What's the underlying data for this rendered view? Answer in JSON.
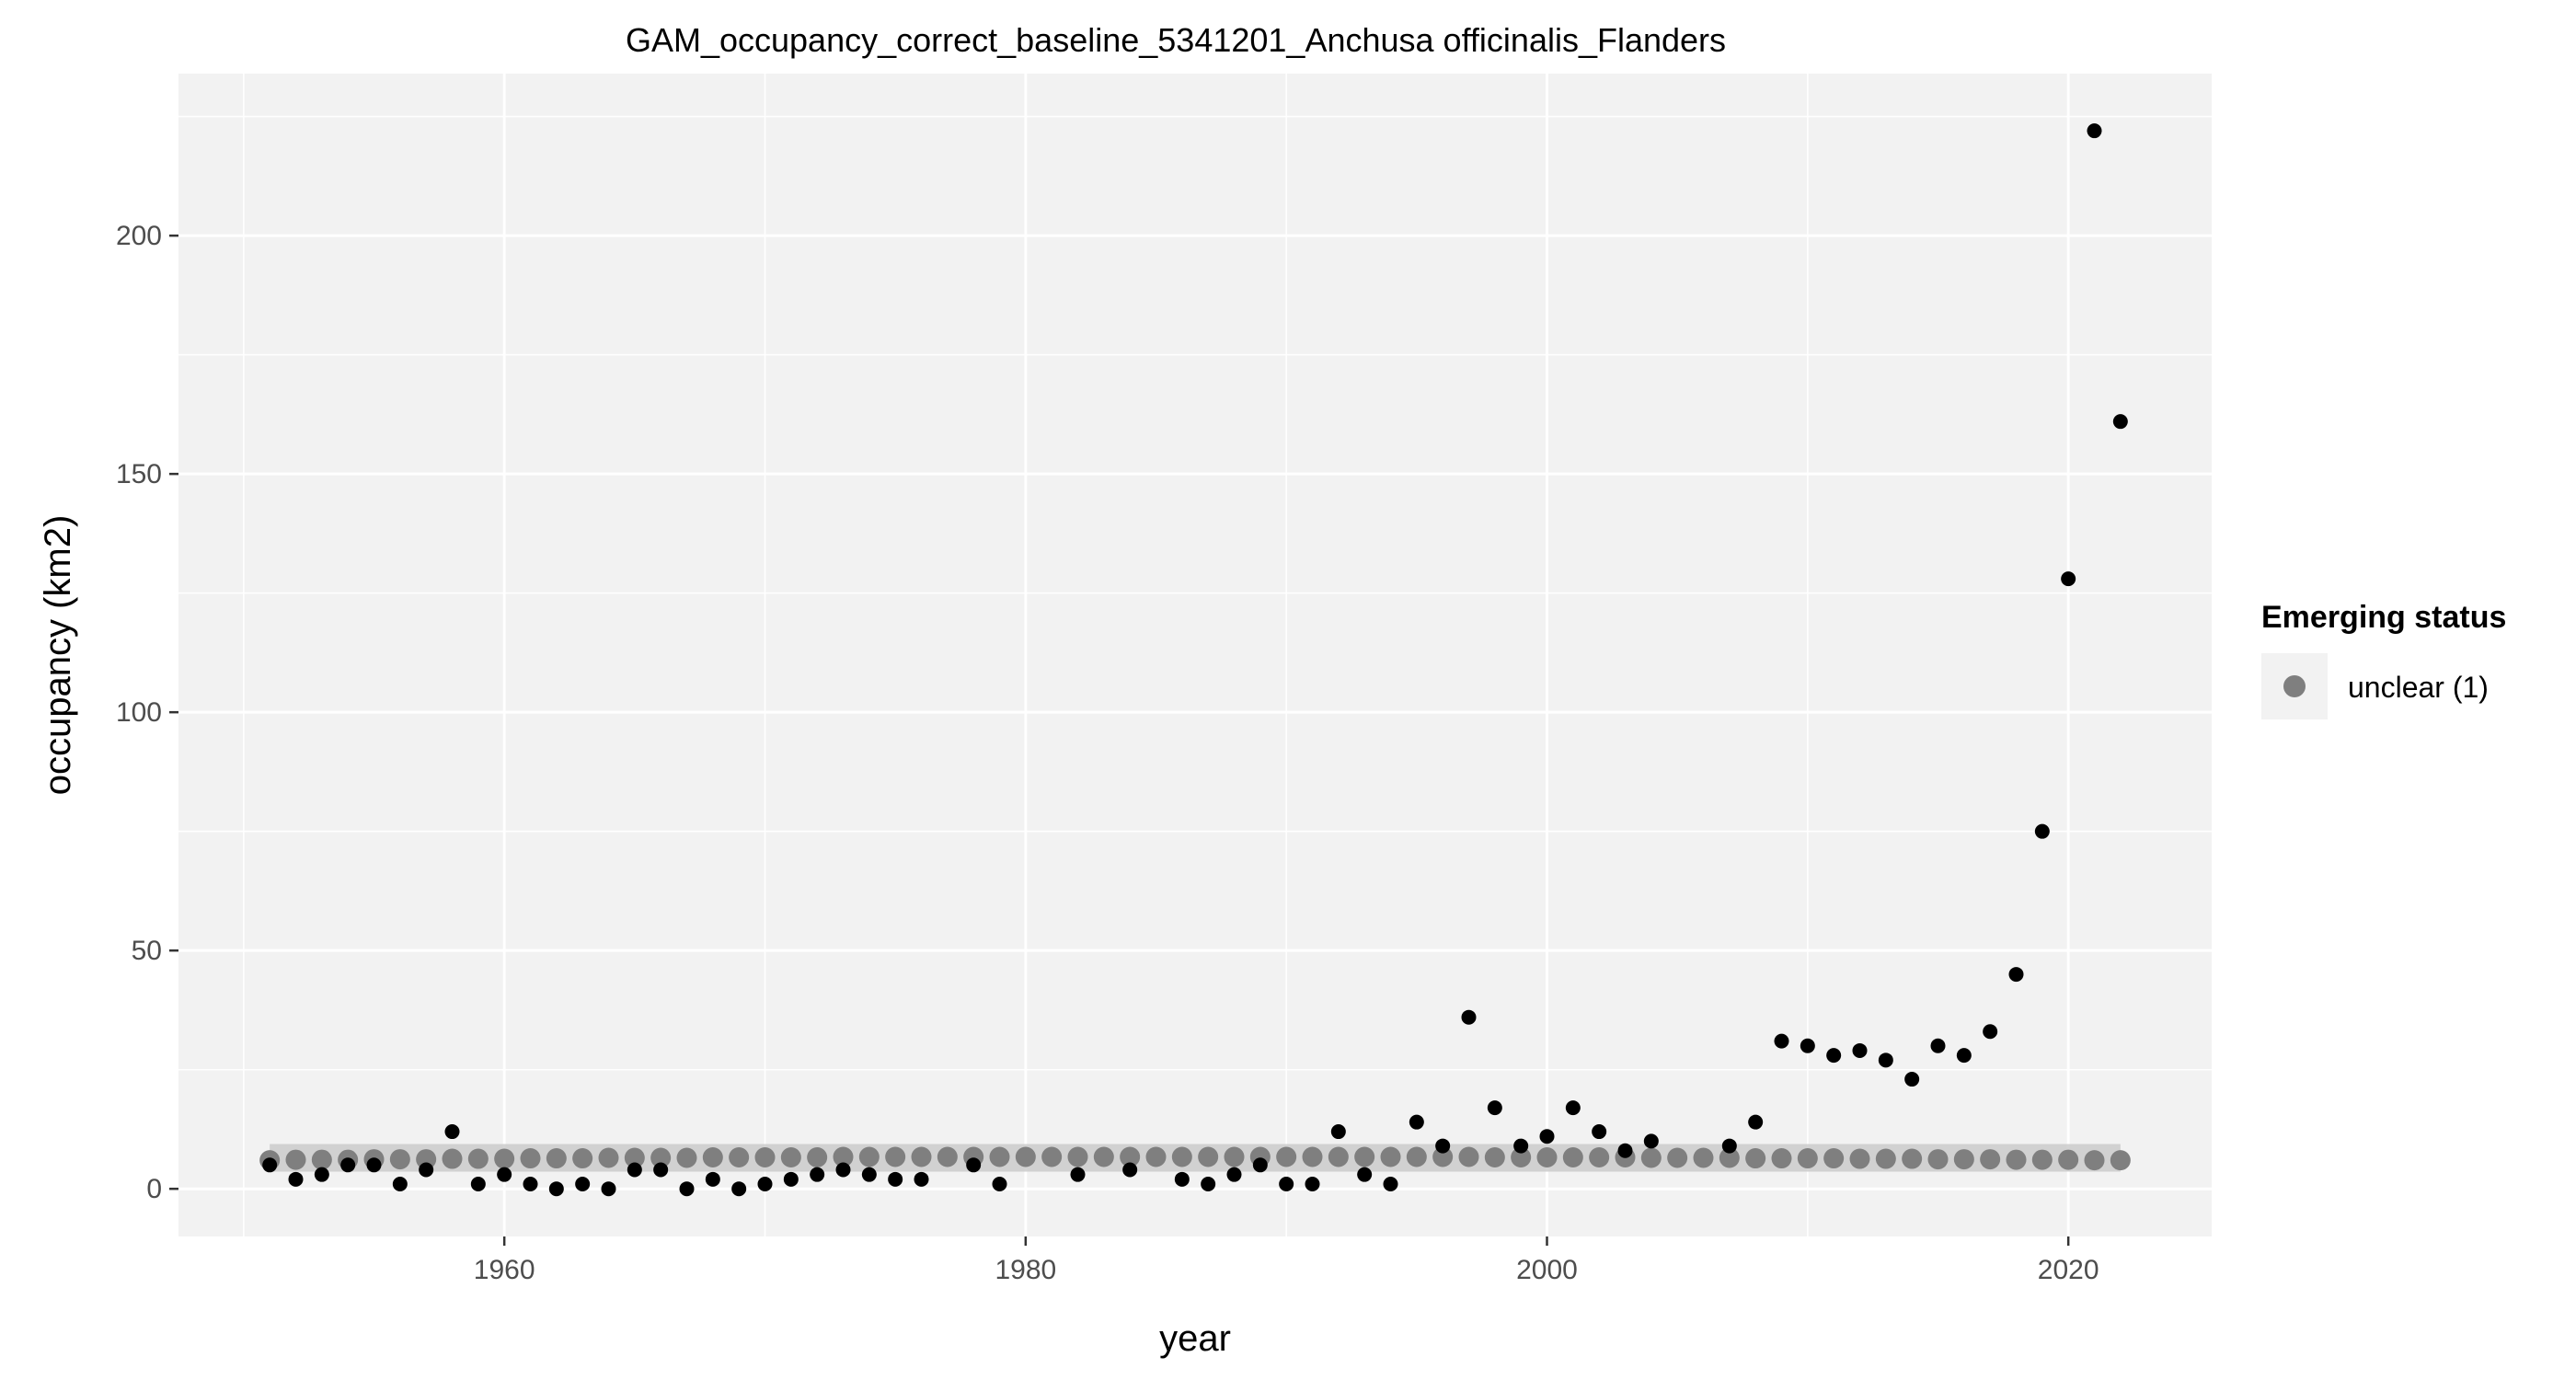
{
  "chart_data": {
    "type": "scatter",
    "title": "GAM_occupancy_correct_baseline_5341201_Anchusa officinalis_Flanders",
    "xlabel": "year",
    "ylabel": "occupancy (km2)",
    "xlim": [
      1947.5,
      2025.5
    ],
    "ylim": [
      -10,
      234
    ],
    "xticks": [
      1960,
      1980,
      2000,
      2020
    ],
    "yticks": [
      0,
      50,
      100,
      150,
      200
    ],
    "grid": true,
    "legend": {
      "title": "Emerging status",
      "entries": [
        {
          "label": "unclear (1)",
          "color": "#7f7f7f"
        }
      ],
      "placement": "right"
    },
    "colors": {
      "panel": "#f2f2f2",
      "grid_major": "#ffffff",
      "observed": "#000000",
      "fit": "#7f7f7f",
      "ribbon": "#c8c8c8"
    },
    "observed": {
      "x": [
        1951,
        1952,
        1953,
        1954,
        1955,
        1956,
        1957,
        1958,
        1959,
        1960,
        1961,
        1962,
        1963,
        1964,
        1965,
        1966,
        1967,
        1968,
        1969,
        1970,
        1971,
        1972,
        1973,
        1974,
        1975,
        1976,
        1978,
        1979,
        1982,
        1984,
        1986,
        1987,
        1988,
        1989,
        1990,
        1991,
        1992,
        1993,
        1994,
        1995,
        1996,
        1997,
        1998,
        1999,
        2000,
        2001,
        2002,
        2003,
        2004,
        2007,
        2008,
        2009,
        2010,
        2011,
        2012,
        2013,
        2014,
        2015,
        2016,
        2017,
        2018,
        2019,
        2020,
        2021,
        2022
      ],
      "y": [
        5,
        2,
        3,
        5,
        5,
        1,
        4,
        12,
        1,
        3,
        1,
        0,
        1,
        0,
        4,
        4,
        0,
        2,
        0,
        1,
        2,
        3,
        4,
        3,
        2,
        2,
        5,
        1,
        3,
        4,
        2,
        1,
        3,
        5,
        1,
        1,
        12,
        3,
        1,
        14,
        9,
        36,
        17,
        9,
        11,
        17,
        12,
        8,
        10,
        9,
        14,
        31,
        30,
        28,
        29,
        27,
        23,
        30,
        28,
        33,
        45,
        75,
        128,
        222,
        161
      ]
    },
    "fitted": {
      "x_start": 1951,
      "x_end": 2022,
      "values": [
        6.0,
        6.1,
        6.1,
        6.1,
        6.2,
        6.2,
        6.2,
        6.3,
        6.3,
        6.3,
        6.4,
        6.4,
        6.4,
        6.5,
        6.5,
        6.5,
        6.5,
        6.6,
        6.6,
        6.6,
        6.6,
        6.6,
        6.7,
        6.7,
        6.7,
        6.7,
        6.7,
        6.7,
        6.7,
        6.7,
        6.7,
        6.7,
        6.7,
        6.7,
        6.7,
        6.7,
        6.7,
        6.7,
        6.7,
        6.7,
        6.7,
        6.7,
        6.7,
        6.7,
        6.7,
        6.7,
        6.7,
        6.6,
        6.6,
        6.6,
        6.6,
        6.6,
        6.6,
        6.5,
        6.5,
        6.5,
        6.5,
        6.4,
        6.4,
        6.4,
        6.4,
        6.3,
        6.3,
        6.3,
        6.2,
        6.2,
        6.2,
        6.1,
        6.1,
        6.1,
        6.0,
        6.0
      ],
      "ribbon_low": 3.6,
      "ribbon_high": 9.4
    }
  }
}
